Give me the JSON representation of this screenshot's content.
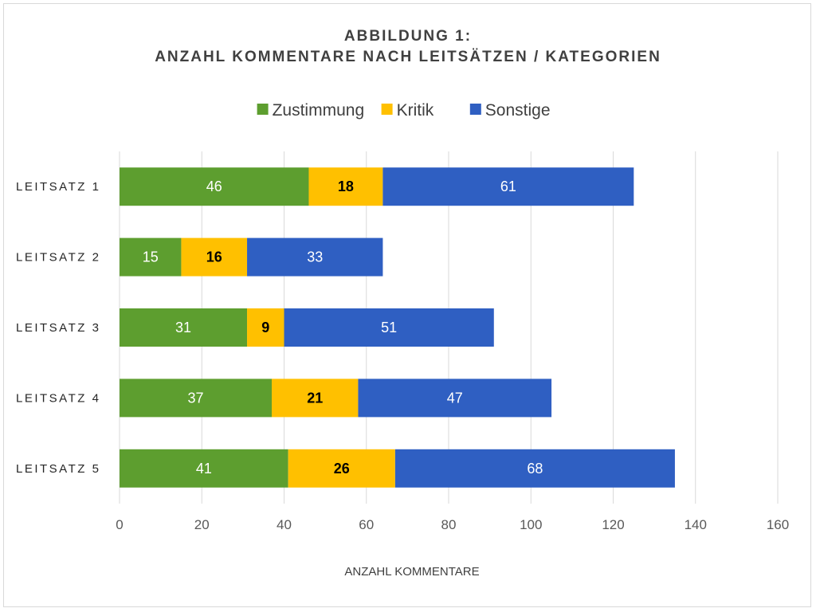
{
  "chart_data": {
    "type": "bar",
    "orientation": "horizontal",
    "stacked": true,
    "title_line1": "ABBILDUNG 1:",
    "title_line2": "ANZAHL KOMMENTARE NACH LEITSÄTZEN / KATEGORIEN",
    "xlabel": "ANZAHL KOMMENTARE",
    "ylabel": "",
    "xlim": [
      0,
      160
    ],
    "xticks": [
      0,
      20,
      40,
      60,
      80,
      100,
      120,
      140,
      160
    ],
    "grid": true,
    "legend_position": "top",
    "categories": [
      "LEITSATZ 1",
      "LEITSATZ 2",
      "LEITSATZ 3",
      "LEITSATZ 4",
      "LEITSATZ 5"
    ],
    "series": [
      {
        "name": "Zustimmung",
        "color": "#5d9e2f",
        "label_color": "#ffffff",
        "values": [
          46,
          15,
          31,
          37,
          41
        ]
      },
      {
        "name": "Kritik",
        "color": "#ffc000",
        "label_color": "#000000",
        "values": [
          18,
          16,
          9,
          21,
          26
        ]
      },
      {
        "name": "Sonstige",
        "color": "#2f5fc2",
        "label_color": "#ffffff",
        "values": [
          61,
          33,
          51,
          47,
          68
        ]
      }
    ]
  }
}
